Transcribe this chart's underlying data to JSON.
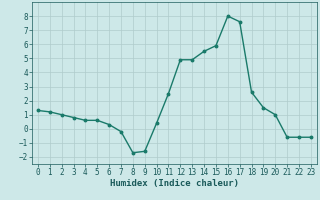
{
  "x": [
    0,
    1,
    2,
    3,
    4,
    5,
    6,
    7,
    8,
    9,
    10,
    11,
    12,
    13,
    14,
    15,
    16,
    17,
    18,
    19,
    20,
    21,
    22,
    23
  ],
  "y": [
    1.3,
    1.2,
    1.0,
    0.8,
    0.6,
    0.6,
    0.3,
    -0.2,
    -1.7,
    -1.6,
    0.4,
    2.5,
    4.9,
    4.9,
    5.5,
    5.9,
    8.0,
    7.6,
    2.6,
    1.5,
    1.0,
    -0.6,
    -0.6,
    -0.6
  ],
  "line_color": "#1a7a6a",
  "marker": "o",
  "marker_size": 1.8,
  "linewidth": 1.0,
  "xlabel": "Humidex (Indice chaleur)",
  "xlim": [
    -0.5,
    23.5
  ],
  "ylim": [
    -2.5,
    9.0
  ],
  "yticks": [
    -2,
    -1,
    0,
    1,
    2,
    3,
    4,
    5,
    6,
    7,
    8
  ],
  "xticks": [
    0,
    1,
    2,
    3,
    4,
    5,
    6,
    7,
    8,
    9,
    10,
    11,
    12,
    13,
    14,
    15,
    16,
    17,
    18,
    19,
    20,
    21,
    22,
    23
  ],
  "bg_color": "#cde8e8",
  "grid_color": "#b0cccc",
  "text_color": "#1a5a5a",
  "xlabel_fontsize": 6.5,
  "tick_fontsize": 5.5
}
